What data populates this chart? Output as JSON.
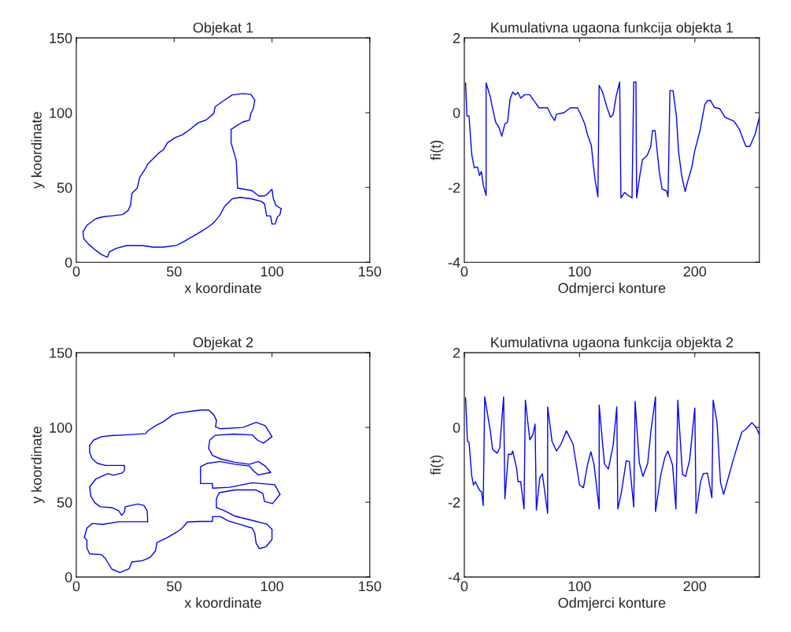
{
  "chart_data": [
    {
      "type": "line",
      "title": "Objekat 1",
      "xlabel": "x koordinate",
      "ylabel": "y koordinate",
      "xlim": [
        0,
        150
      ],
      "ylim": [
        0,
        150
      ],
      "xticks": [
        0,
        50,
        100,
        150
      ],
      "yticks": [
        0,
        50,
        100,
        150
      ],
      "series": [
        {
          "color": "#0000ff",
          "x": [
            3.4,
            5.4,
            10.1,
            13.5,
            17.6,
            23.6,
            26.4,
            27.7,
            28.4,
            31.1,
            32.4,
            35.1,
            36.5,
            39.2,
            41.9,
            44.6,
            46.6,
            50.7,
            54.1,
            58.1,
            62.2,
            66.2,
            70.3,
            70.9,
            75.7,
            79.7,
            85.1,
            89.2,
            91.2
          ],
          "values": [
            20.3,
            24.7,
            29.2,
            30.4,
            31.0,
            31.9,
            34.5,
            38.1,
            46.1,
            49.6,
            56.8,
            62.1,
            65.7,
            69.2,
            72.8,
            75.4,
            79.9,
            83.5,
            85.2,
            88.8,
            93.2,
            95.0,
            99.5,
            103.9,
            108.4,
            111.9,
            112.8,
            112.3,
            108.4
          ]
        },
        {
          "color": "#0000ff",
          "x": [
            91.2,
            90.5,
            89.2,
            88.5,
            85.1,
            81.1,
            79.1
          ],
          "values": [
            108.4,
            103.0,
            99.5,
            95.0,
            93.8,
            90.6,
            88.8
          ]
        },
        {
          "color": "#0000ff",
          "x": [
            79.1,
            79.1,
            81.1,
            81.8,
            82.4,
            89.9,
            93.2,
            95.9,
            97.3,
            100.0,
            100.7,
            102.0,
            104.7
          ],
          "values": [
            88.8,
            79.9,
            71.0,
            67.4,
            49.6,
            47.9,
            44.3,
            44.3,
            45.2,
            48.8,
            42.5,
            38.1,
            35.8
          ]
        },
        {
          "color": "#0000ff",
          "x": [
            104.7,
            104.1,
            102.7,
            101.6,
            100.0,
            99.3,
            97.3,
            96.2,
            94.6,
            89.2,
            83.8,
            79.7,
            75.7,
            73.6,
            70.3,
            67.6,
            63.5,
            58.1,
            55.4,
            51.4,
            44.6,
            39.2,
            33.8,
            25.7,
            20.3,
            16.9,
            15.9,
            12.8,
            10.1,
            6.1,
            3.8,
            3.4
          ],
          "values": [
            35.8,
            31.9,
            30.1,
            25.6,
            25.6,
            31.0,
            31.0,
            39.0,
            40.7,
            42.5,
            43.4,
            42.5,
            37.2,
            31.9,
            26.5,
            23.8,
            20.3,
            16.2,
            14.1,
            11.4,
            10.1,
            10.1,
            11.2,
            11.2,
            9.3,
            6.9,
            3.4,
            5.2,
            7.8,
            12.3,
            15.8,
            20.3
          ]
        }
      ]
    },
    {
      "type": "line",
      "title": "Kumulativna ugaona funkcija objekta 1",
      "xlabel": "Odmjerci konture",
      "ylabel": "fi(t)",
      "xlim": [
        0,
        256
      ],
      "ylim": [
        -4,
        2
      ],
      "xticks": [
        0,
        100,
        200
      ],
      "yticks": [
        -4,
        -2,
        0,
        2
      ],
      "series": [
        {
          "color": "#0000ff",
          "x": [
            1.1,
            2.3,
            4.1,
            6.4,
            8.6,
            11.4,
            13.2,
            14.8,
            16.4,
            18.9,
            18.9,
            22.7,
            23.9,
            27.3,
            30.2,
            32.5,
            35.2,
            37.5,
            39.8,
            42.0,
            44.3,
            46.6,
            48.9,
            52.3,
            56.8,
            60.9,
            64.8,
            72.3,
            75.0,
            78.4,
            80.0,
            86.4,
            92.0,
            98.2,
            101.1,
            104.5,
            106.8,
            110.2,
            111.8,
            113.6,
            115.9,
            117.0,
            120.0,
            123.9,
            126.8,
            129.1,
            131.8,
            134.8,
            135.9,
            139.1,
            142.0,
            145.5,
            147.0,
            148.9,
            149.5,
            152.3,
            154.5,
            158.6,
            161.8,
            163.2,
            165.5,
            169.3,
            171.6,
            175.5,
            176.8,
            178.4,
            181.1,
            184.1,
            185.9,
            188.6,
            191.6,
            193.6,
            197.3,
            200.0,
            204.5,
            208.6,
            210.9,
            213.6,
            217.0,
            221.6,
            226.1,
            234.1,
            238.6,
            244.3,
            247.7,
            252.3,
            256.0
          ],
          "values": [
            0.8,
            -0.09,
            -0.09,
            -1.11,
            -1.47,
            -1.45,
            -1.68,
            -1.57,
            -1.93,
            -2.21,
            0.8,
            0.41,
            0.2,
            -0.26,
            -0.4,
            -0.63,
            -0.3,
            -0.25,
            0.38,
            0.55,
            0.48,
            0.54,
            0.39,
            0.48,
            0.48,
            0.3,
            0.13,
            0.13,
            -0.05,
            -0.21,
            -0.04,
            0.0,
            0.13,
            0.13,
            -0.05,
            -0.3,
            -0.58,
            -0.87,
            -1.36,
            -1.82,
            -2.25,
            0.73,
            0.55,
            0.13,
            -0.12,
            -0.05,
            0.45,
            0.82,
            -2.28,
            -2.13,
            -2.21,
            -2.28,
            0.82,
            0.82,
            -2.28,
            -1.68,
            -1.26,
            -1.15,
            -0.9,
            -0.48,
            -0.48,
            -1.61,
            -2.04,
            -2.09,
            -2.25,
            0.59,
            0.59,
            -0.11,
            -1.04,
            -1.68,
            -2.11,
            -1.86,
            -1.47,
            -1.01,
            -0.48,
            0.21,
            0.32,
            0.33,
            0.14,
            0.11,
            -0.12,
            -0.23,
            -0.44,
            -0.9,
            -0.9,
            -0.58,
            -0.12
          ]
        }
      ]
    },
    {
      "type": "line",
      "title": "Objekat 2",
      "xlabel": "x koordinate",
      "ylabel": "y koordinate",
      "xlim": [
        0,
        150
      ],
      "ylim": [
        0,
        150
      ],
      "xticks": [
        0,
        50,
        100,
        150
      ],
      "yticks": [
        0,
        50,
        100,
        150
      ],
      "series": [
        {
          "color": "#0000ff",
          "x": [
            71.6,
            71.2
          ],
          "values": [
            104.8,
            100.4
          ]
        },
        {
          "color": "#0000ff",
          "x": [
            71.2,
            73.6,
            85.1,
            91.9,
            96.6,
            100.0
          ],
          "values": [
            100.4,
            99.1,
            100.0,
            103.4,
            101.2,
            93.8
          ]
        },
        {
          "color": "#0000ff",
          "x": [
            100.0,
            95.7,
            92.6,
            89.9,
            80.4,
            70.9,
            68.2,
            67.6
          ],
          "values": [
            93.8,
            89.5,
            91.5,
            95.0,
            95.6,
            94.7,
            91.5,
            86.1
          ]
        },
        {
          "color": "#0000ff",
          "x": [
            67.6,
            69.6,
            73.6,
            81.1,
            88.5,
            93.0,
            96.6,
            99.3
          ],
          "values": [
            86.1,
            81.3,
            79.0,
            76.7,
            75.4,
            77.2,
            74.2,
            69.9
          ]
        },
        {
          "color": "#0000ff",
          "x": [
            99.3,
            93.0,
            90.5,
            88.5,
            81.1,
            73.6,
            66.9,
            63.5,
            63.5
          ],
          "values": [
            69.9,
            68.3,
            71.0,
            74.2,
            75.4,
            77.2,
            76.0,
            73.7,
            62.5
          ]
        },
        {
          "color": "#0000ff",
          "x": [
            63.5,
            69.6,
            69.6,
            78.4,
            89.9,
            101.4,
            104.1
          ],
          "values": [
            62.5,
            62.5,
            59.4,
            60.0,
            63.0,
            61.7,
            55.3
          ]
        },
        {
          "color": "#0000ff",
          "x": [
            104.1,
            100.3,
            96.2,
            95.3,
            91.9,
            81.1,
            73.0,
            71.6,
            71.6
          ],
          "values": [
            55.3,
            49.1,
            50.5,
            55.9,
            58.2,
            58.2,
            56.4,
            52.3,
            46.4
          ]
        },
        {
          "color": "#0000ff",
          "x": [
            71.6,
            75.7,
            81.1,
            89.2,
            97.3,
            100.0
          ],
          "values": [
            46.4,
            44.3,
            40.7,
            38.1,
            35.4,
            31.9
          ]
        },
        {
          "color": "#0000ff",
          "x": [
            100.0,
            100.0,
            97.0,
            93.5,
            91.9,
            91.2,
            89.9,
            83.8,
            77.7,
            73.6,
            69.6,
            69.6,
            62.8,
            56.8,
            54.1,
            51.4,
            46.6,
            41.2,
            40.5,
            37.8,
            33.8,
            28.4,
            27.0,
            22.3,
            18.2,
            14.9,
            12.8,
            6.8,
            5.4,
            5.4,
            4.1
          ],
          "values": [
            31.9,
            25.1,
            20.3,
            19.0,
            22.6,
            29.2,
            32.7,
            35.1,
            37.5,
            40.4,
            40.4,
            37.2,
            37.2,
            36.8,
            32.7,
            30.1,
            26.5,
            23.0,
            17.6,
            13.2,
            10.9,
            10.1,
            5.5,
            3.0,
            5.2,
            12.3,
            15.0,
            15.5,
            19.4,
            24.7,
            26.5
          ]
        },
        {
          "color": "#0000ff",
          "x": [
            4.1,
            5.4,
            8.1,
            13.5,
            21.6,
            36.5
          ],
          "values": [
            26.5,
            32.7,
            35.8,
            35.2,
            37.0,
            37.0
          ]
        },
        {
          "color": "#0000ff",
          "x": [
            36.5,
            36.2,
            34.5,
            31.4,
            25.0,
            24.6,
            23.2,
            21.6,
            18.2,
            12.2,
            9.5,
            7.4,
            6.8
          ],
          "values": [
            37.0,
            44.3,
            47.9,
            48.8,
            47.0,
            43.4,
            41.3,
            44.3,
            46.4,
            47.0,
            49.6,
            54.1,
            60.3
          ]
        },
        {
          "color": "#0000ff",
          "x": [
            6.8,
            10.1,
            16.2,
            18.9,
            23.6,
            24.6,
            24.6
          ],
          "values": [
            60.3,
            65.7,
            69.2,
            68.0,
            69.6,
            71.4,
            74.6
          ]
        },
        {
          "color": "#0000ff",
          "x": [
            24.6,
            14.9,
            10.8,
            8.1,
            6.8,
            6.8
          ],
          "values": [
            74.6,
            74.6,
            76.0,
            79.0,
            83.5,
            87.9
          ]
        },
        {
          "color": "#0000ff",
          "x": [
            6.8,
            8.8,
            12.8,
            17.6,
            25.0,
            35.5,
            36.5,
            40.5,
            44.6,
            49.3,
            52.0,
            59.5,
            63.5,
            67.6,
            70.3,
            71.6
          ],
          "values": [
            87.9,
            91.5,
            93.8,
            94.5,
            95.0,
            95.9,
            97.7,
            101.2,
            103.9,
            108.4,
            109.6,
            111.0,
            111.6,
            111.6,
            108.4,
            104.8
          ]
        }
      ]
    },
    {
      "type": "line",
      "title": "Kumulativna ugaona funkcija objekta 2",
      "xlabel": "Odmjerci konture",
      "ylabel": "fi(t)",
      "xlim": [
        0,
        256
      ],
      "ylim": [
        -4,
        2
      ],
      "xticks": [
        0,
        100,
        200
      ],
      "yticks": [
        -4,
        -2,
        0,
        2
      ],
      "series": [
        {
          "color": "#0000ff",
          "x": [
            1.1,
            2.7,
            4.1,
            6.4,
            8.0,
            9.5,
            13.2,
            15.0,
            16.4,
            17.7,
            22.7,
            24.5,
            28.4,
            30.7,
            34.1,
            35.2,
            38.2,
            40.9,
            42.0,
            45.5,
            46.6,
            48.9,
            51.8,
            53.0,
            56.8,
            59.5,
            61.4,
            62.5,
            65.5,
            67.7,
            72.3,
            72.3,
            76.1,
            80.0,
            84.1,
            88.6,
            94.3,
            100.0,
            103.4,
            106.8,
            109.8,
            112.5,
            117.0,
            117.0,
            121.6,
            125.0,
            129.1,
            132.3,
            133.2,
            136.4,
            140.5,
            143.2,
            147.0,
            148.2,
            151.8,
            155.0,
            159.1,
            161.8,
            165.9,
            165.9,
            170.5,
            173.9,
            176.6,
            180.7,
            183.6,
            185.2,
            189.3,
            192.0,
            195.5,
            200.0,
            201.1,
            205.0,
            207.3,
            210.9,
            214.8,
            215.9,
            219.3,
            222.3,
            225.0,
            227.3,
            233.0,
            237.5,
            240.9,
            244.3,
            249.5,
            253.4,
            256.0
          ],
          "values": [
            0.8,
            -0.37,
            -0.4,
            -1.29,
            -1.54,
            -1.45,
            -1.68,
            -1.72,
            -2.09,
            0.82,
            -0.12,
            -0.58,
            -0.69,
            -0.55,
            0.82,
            -1.91,
            -0.72,
            -0.72,
            -0.63,
            -1.11,
            -1.45,
            -1.45,
            -2.18,
            0.73,
            -0.33,
            -0.19,
            0.09,
            -2.21,
            -1.35,
            -1.24,
            -2.3,
            0.55,
            -0.37,
            -0.63,
            -0.43,
            -0.09,
            -0.44,
            -1.54,
            -1.61,
            -1.01,
            -0.65,
            -0.98,
            -2.18,
            0.6,
            -0.98,
            -1.11,
            -0.48,
            0.55,
            -2.18,
            -1.72,
            -0.89,
            -0.91,
            -2.13,
            0.7,
            -0.94,
            -1.31,
            -0.96,
            -0.12,
            0.82,
            -2.25,
            -1.26,
            -0.81,
            -0.63,
            -1.01,
            -2.18,
            0.73,
            -1.26,
            -1.31,
            -0.87,
            0.52,
            -2.3,
            -1.45,
            -1.24,
            -1.22,
            -1.88,
            0.73,
            0.13,
            -1.47,
            -1.79,
            -1.54,
            -0.9,
            -0.44,
            -0.12,
            -0.05,
            0.13,
            -0.01,
            -0.19
          ]
        }
      ]
    }
  ]
}
